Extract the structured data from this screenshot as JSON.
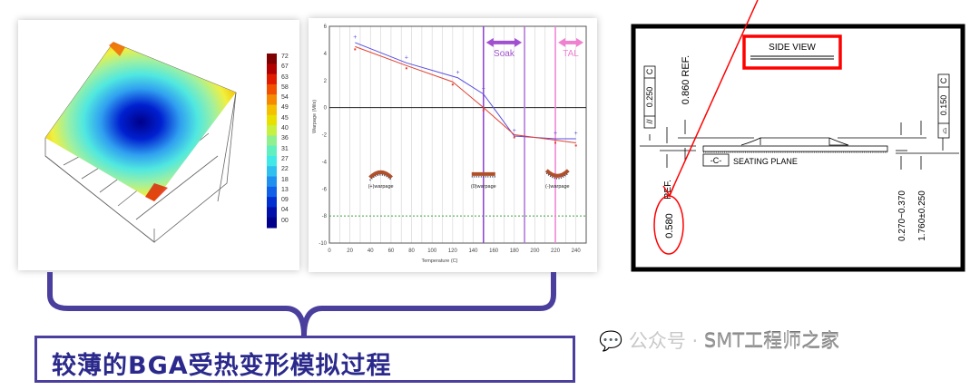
{
  "surface_plot": {
    "colorbar_labels": [
      "72",
      "67",
      "63",
      "58",
      "54",
      "49",
      "45",
      "40",
      "36",
      "31",
      "27",
      "22",
      "18",
      "13",
      "09",
      "04",
      "00"
    ],
    "colorbar_colors": [
      "#7f0000",
      "#b00000",
      "#e01b00",
      "#f05000",
      "#f58a00",
      "#f5c000",
      "#e8e000",
      "#c8f040",
      "#90f090",
      "#60f0c0",
      "#40e8e8",
      "#30c0f0",
      "#2090f0",
      "#1060e8",
      "#0030d0",
      "#0010a8",
      "#00008a"
    ]
  },
  "chart_data": {
    "type": "line",
    "xlabel": "Temperature (C)",
    "ylabel": "Warpage (Mils)",
    "xlim": [
      0,
      250
    ],
    "ylim": [
      -10,
      6
    ],
    "x_ticks": [
      0,
      20,
      40,
      60,
      80,
      100,
      120,
      140,
      160,
      180,
      200,
      220,
      240
    ],
    "y_ticks": [
      6,
      4,
      2,
      0,
      -2,
      -4,
      -6,
      -8,
      -10
    ],
    "grid": "vertical",
    "series": [
      {
        "color": "#5a4fe0",
        "points": [
          [
            25,
            4.8
          ],
          [
            75,
            3.3
          ],
          [
            125,
            2.2
          ],
          [
            150,
            1.0
          ],
          [
            180,
            -2.1
          ],
          [
            220,
            -2.3
          ],
          [
            240,
            -2.3
          ]
        ]
      },
      {
        "color": "#e04030",
        "points": [
          [
            25,
            4.5
          ],
          [
            75,
            3.1
          ],
          [
            120,
            1.9
          ],
          [
            150,
            0.0
          ],
          [
            180,
            -2.0
          ],
          [
            220,
            -2.4
          ],
          [
            240,
            -2.6
          ]
        ]
      }
    ],
    "reference_line_y": -8,
    "vertical_markers": [
      {
        "x": 150,
        "color": "#8a3fd0"
      },
      {
        "x": 190,
        "color": "#b070d8"
      },
      {
        "x": 220,
        "color": "#f080d8"
      }
    ],
    "annotations": [
      {
        "text": "Soak",
        "from": 150,
        "to": 190,
        "color": "#a050d0"
      },
      {
        "text": "TAL",
        "from": 220,
        "to": 250,
        "color": "#f080d0"
      }
    ],
    "shape_labels": [
      {
        "text": "(+)warpage",
        "x": 50,
        "shape": "convex"
      },
      {
        "text": "(0)warpage",
        "x": 150,
        "shape": "flat"
      },
      {
        "text": "(-)warpage",
        "x": 222,
        "shape": "concave"
      }
    ]
  },
  "drawing": {
    "title": "SIDE VIEW",
    "dim_left_ref": "0.860  REF.",
    "dim_bottom_ref": "REF.",
    "dim_highlight": "0.580",
    "tol_left": [
      "//",
      "0.250",
      "C"
    ],
    "tol_right": [
      "⌓",
      "0.150",
      "C"
    ],
    "datum": "-C-",
    "seating_plane": "SEATING  PLANE",
    "dim_right_1": "0.270~0.370",
    "dim_right_2": "1.760±0.250",
    "highlight_color": "#ff0000"
  },
  "caption": {
    "text": "较薄的BGA受热变形模拟过程",
    "color": "#2b2a8c"
  },
  "watermark": {
    "prefix": "公众号 · ",
    "name": "SMT工程师之家"
  }
}
